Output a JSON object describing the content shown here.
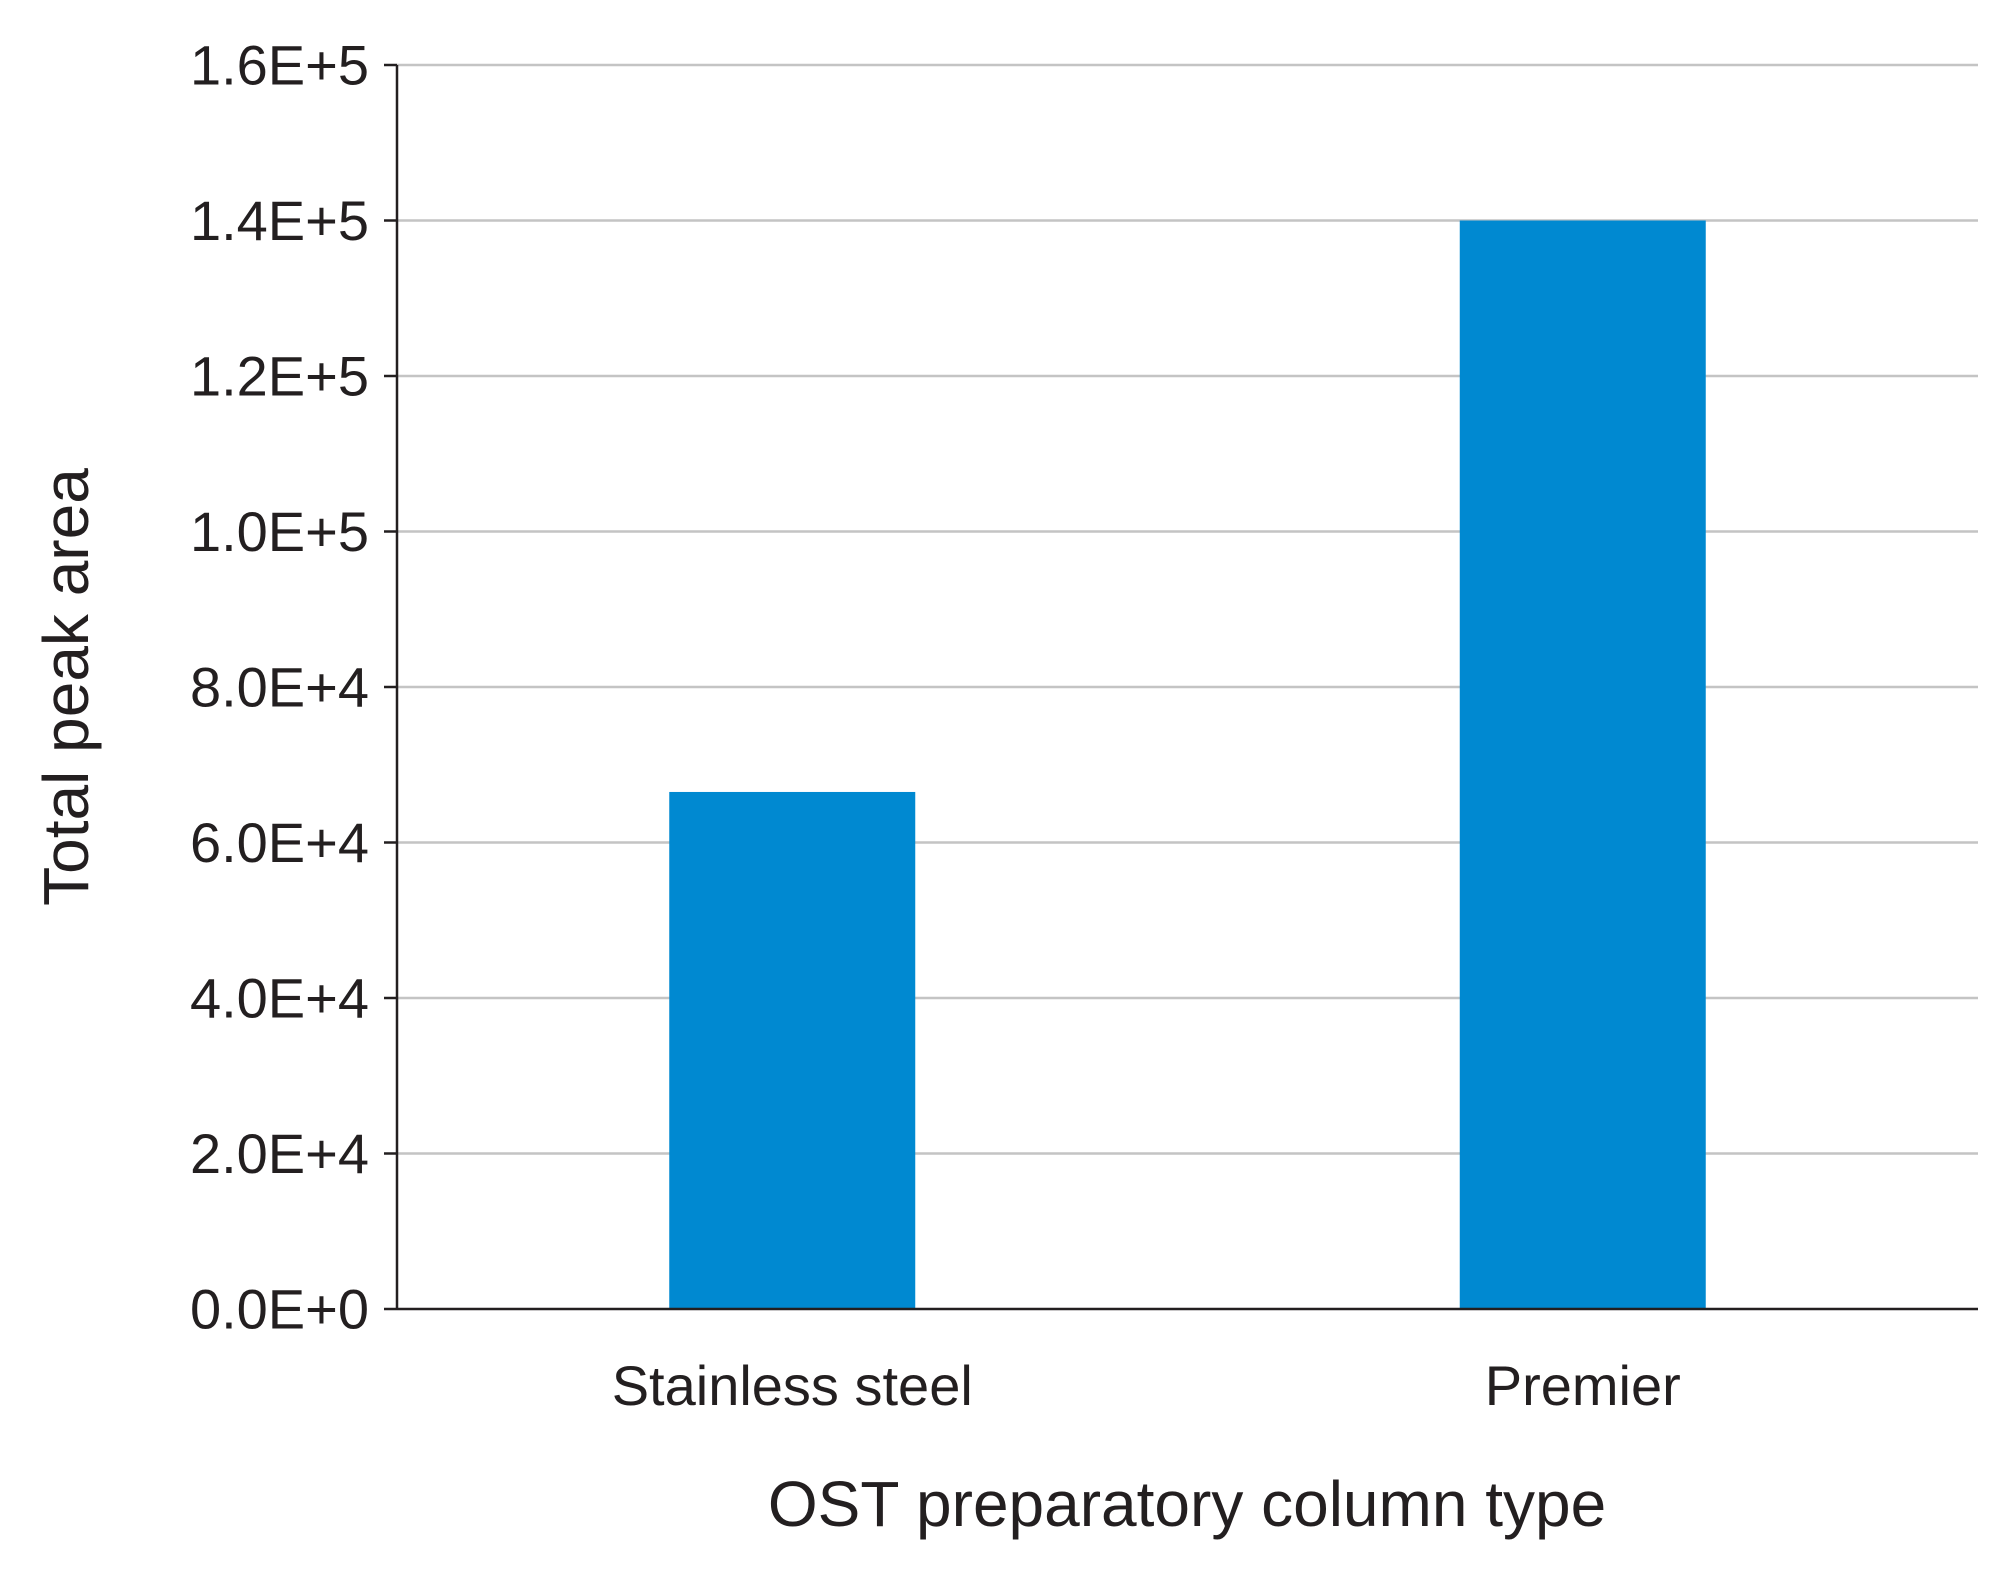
{
  "chart_data": {
    "type": "bar",
    "categories": [
      "Stainless steel",
      "Premier"
    ],
    "values": [
      66500,
      140000
    ],
    "title": "",
    "xlabel": "OST preparatory column type",
    "ylabel": "Total peak area",
    "ylim": [
      0,
      160000
    ],
    "yticks": [
      0,
      20000,
      40000,
      60000,
      80000,
      100000,
      120000,
      140000,
      160000
    ],
    "ytick_labels": [
      "0.0E+0",
      "2.0E+4",
      "4.0E+4",
      "6.0E+4",
      "8.0E+4",
      "1.0E+5",
      "1.2E+5",
      "1.4E+5",
      "1.6E+5"
    ],
    "grid": true,
    "legend": "none",
    "colors": {
      "bar": "#0089d1",
      "grid": "#c4c4c4",
      "axis": "#231f20",
      "text": "#231f20"
    }
  }
}
